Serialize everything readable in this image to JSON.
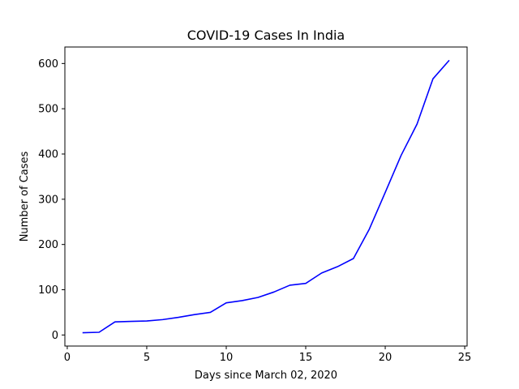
{
  "chart_data": {
    "type": "line",
    "title": "COVID-19 Cases In India",
    "xlabel": "Days since March 02, 2020",
    "ylabel": "Number of Cases",
    "xlim": [
      -0.15,
      25.15
    ],
    "ylim": [
      -24.45,
      636.45
    ],
    "xticks": [
      0,
      5,
      10,
      15,
      20,
      25
    ],
    "yticks": [
      0,
      100,
      200,
      300,
      400,
      500,
      600
    ],
    "grid": false,
    "series": [
      {
        "color": "#0000ff",
        "x": [
          1,
          2,
          3,
          4,
          5,
          6,
          7,
          8,
          9,
          10,
          11,
          12,
          13,
          14,
          15,
          16,
          17,
          18,
          19,
          20,
          21,
          22,
          23,
          24
        ],
        "y": [
          5,
          6,
          29,
          30,
          31,
          34,
          39,
          45,
          50,
          71,
          76,
          83,
          95,
          110,
          114,
          137,
          151,
          169,
          234,
          315,
          397,
          466,
          566,
          606
        ]
      }
    ]
  }
}
